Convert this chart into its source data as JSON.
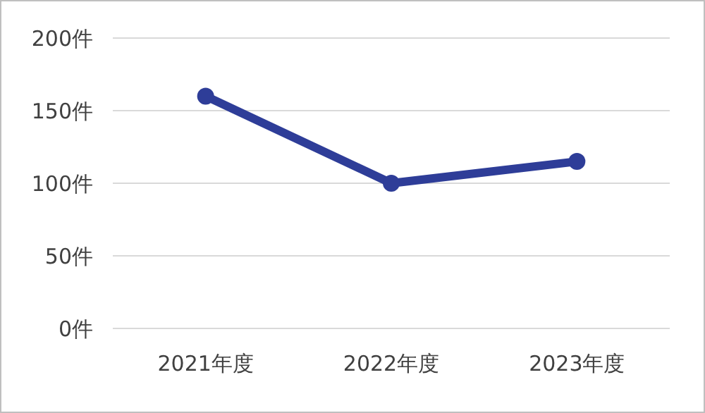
{
  "chart_data": {
    "type": "line",
    "categories": [
      "2021年度",
      "2022年度",
      "2023年度"
    ],
    "series": [
      {
        "color": "#2e3d98",
        "values": [
          160,
          100,
          115
        ]
      }
    ],
    "ylim": [
      0,
      200
    ],
    "yticks": [
      {
        "value": 0,
        "label": "0件"
      },
      {
        "value": 50,
        "label": "50件"
      },
      {
        "value": 100,
        "label": "100件"
      },
      {
        "value": 150,
        "label": "150件"
      },
      {
        "value": 200,
        "label": "200件"
      }
    ],
    "grid": "y",
    "marker": "circle",
    "line_style": "solid"
  }
}
